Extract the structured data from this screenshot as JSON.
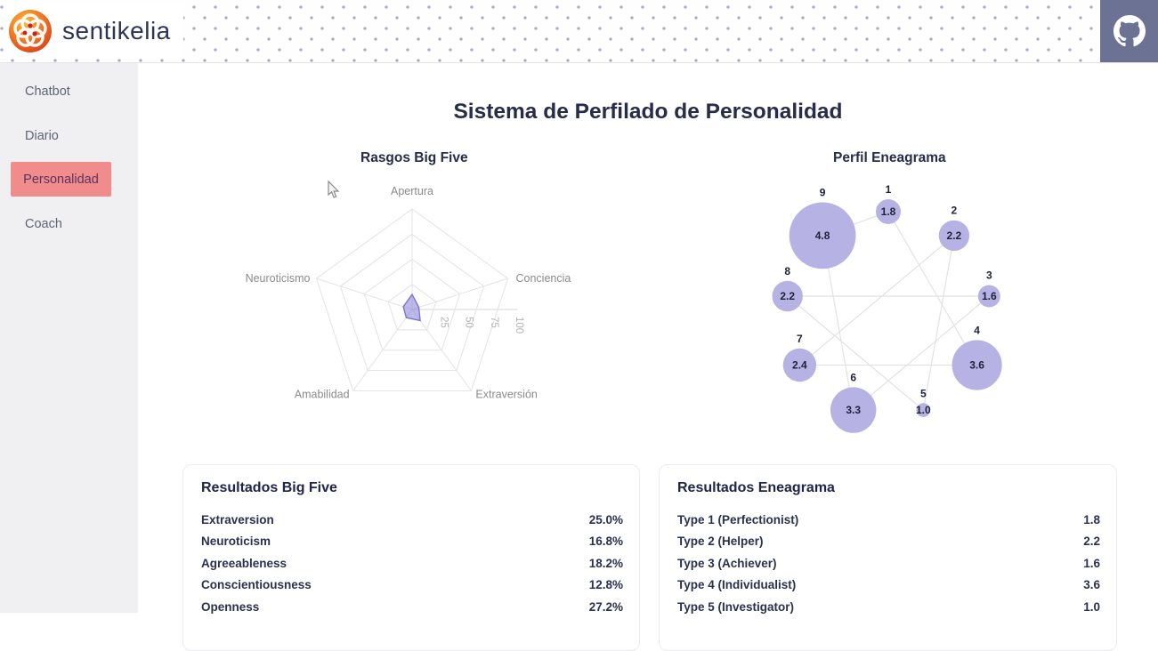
{
  "header": {
    "brand": "sentikelia"
  },
  "sidebar": {
    "items": [
      {
        "label": "Chatbot",
        "active": false
      },
      {
        "label": "Diario",
        "active": false
      },
      {
        "label": "Personalidad",
        "active": true
      },
      {
        "label": "Coach",
        "active": false
      }
    ]
  },
  "main": {
    "title": "Sistema de Perfilado de Personalidad"
  },
  "chart_data": [
    {
      "type": "radar",
      "title": "Rasgos Big Five",
      "categories": [
        "Apertura",
        "Conciencia",
        "Extraversión",
        "Amabilidad",
        "Neuroticismo"
      ],
      "values": [
        27.2,
        12.8,
        25.0,
        18.2,
        16.8
      ],
      "rmax": 100,
      "ticks": [
        25,
        50,
        75,
        100
      ],
      "grid": "pentagon, 4 rings",
      "fill_color": "rgba(124,116,212,0.5)",
      "line_color": "#7d75cf",
      "grid_color": "#e3e3e6",
      "label_color": "#8b8b8b"
    },
    {
      "type": "scatter",
      "title": "Perfil Eneagrama",
      "points": [
        {
          "type": "1",
          "value": 1.8
        },
        {
          "type": "2",
          "value": 2.2
        },
        {
          "type": "3",
          "value": 1.6
        },
        {
          "type": "4",
          "value": 3.6
        },
        {
          "type": "5",
          "value": 1.0
        },
        {
          "type": "6",
          "value": 3.3
        },
        {
          "type": "7",
          "value": 2.4
        },
        {
          "type": "8",
          "value": 2.2
        },
        {
          "type": "9",
          "value": 4.8
        }
      ],
      "connections": [
        [
          1,
          4
        ],
        [
          4,
          7
        ],
        [
          7,
          2
        ],
        [
          2,
          5
        ],
        [
          5,
          8
        ],
        [
          8,
          3
        ],
        [
          3,
          6
        ],
        [
          6,
          9
        ],
        [
          9,
          1
        ]
      ],
      "layout": "9 nodes on circle, node 1 at top, clockwise, bubble size ~ value",
      "bubble_color": "#b7b2e4",
      "line_color": "#e2e2e6",
      "text_color": "#1d2238"
    }
  ],
  "tables": {
    "big_five": {
      "title": "Resultados Big Five",
      "rows": [
        {
          "label": "Extraversion",
          "value": "25.0%"
        },
        {
          "label": "Neuroticism",
          "value": "16.8%"
        },
        {
          "label": "Agreeableness",
          "value": "18.2%"
        },
        {
          "label": "Conscientiousness",
          "value": "12.8%"
        },
        {
          "label": "Openness",
          "value": "27.2%"
        }
      ]
    },
    "eneagrama": {
      "title": "Resultados Eneagrama",
      "rows": [
        {
          "label": "Type 1 (Perfectionist)",
          "value": "1.8"
        },
        {
          "label": "Type 2 (Helper)",
          "value": "2.2"
        },
        {
          "label": "Type 3 (Achiever)",
          "value": "1.6"
        },
        {
          "label": "Type 4 (Individualist)",
          "value": "3.6"
        },
        {
          "label": "Type 5 (Investigator)",
          "value": "1.0"
        }
      ]
    }
  }
}
